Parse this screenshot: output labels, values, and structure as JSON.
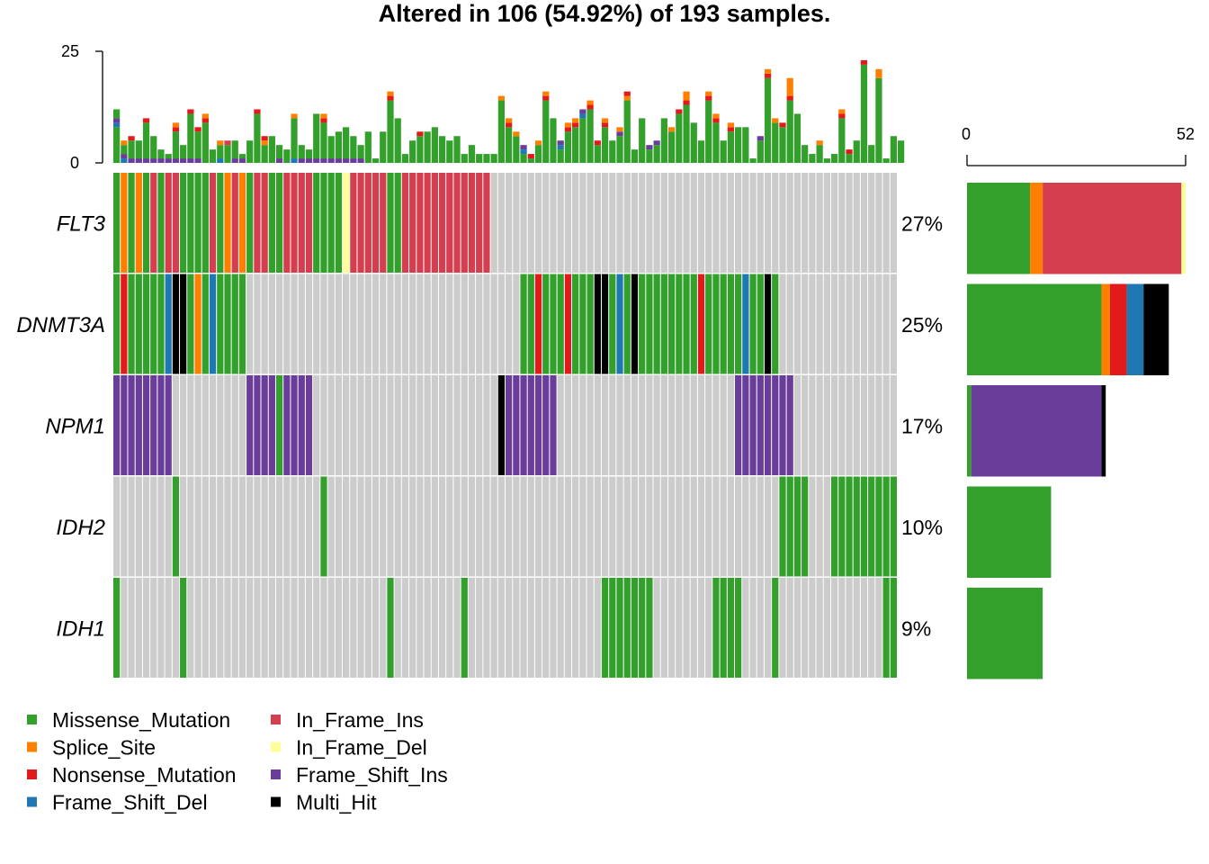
{
  "chart_data": {
    "type": "oncoplot",
    "title": "Altered in 106 (54.92%) of 193 samples.",
    "n_samples_shown": 106,
    "top_axis": {
      "ticks": [
        "0",
        "25"
      ],
      "min": 0,
      "max": 25
    },
    "right_axis": {
      "ticks": [
        "0",
        "52"
      ],
      "min": 0,
      "max": 52
    },
    "genes": [
      {
        "name": "FLT3",
        "pct": "27%",
        "counts": {
          "Missense_Mutation": 15,
          "Splice_Site": 3,
          "In_Frame_Ins": 33,
          "In_Frame_Del": 1
        }
      },
      {
        "name": "DNMT3A",
        "pct": "25%",
        "counts": {
          "Missense_Mutation": 32,
          "Splice_Site": 2,
          "Nonsense_Mutation": 4,
          "Frame_Shift_Del": 4,
          "Multi_Hit": 6
        }
      },
      {
        "name": "NPM1",
        "pct": "17%",
        "counts": {
          "Missense_Mutation": 1,
          "Frame_Shift_Ins": 31,
          "Multi_Hit": 1
        }
      },
      {
        "name": "IDH2",
        "pct": "10%",
        "counts": {
          "Missense_Mutation": 20
        }
      },
      {
        "name": "IDH1",
        "pct": "9%",
        "counts": {
          "Missense_Mutation": 18
        }
      }
    ],
    "legend": [
      {
        "label": "Missense_Mutation",
        "color": "#33A02C"
      },
      {
        "label": "Splice_Site",
        "color": "#FF7F00"
      },
      {
        "label": "Nonsense_Mutation",
        "color": "#E31A1C"
      },
      {
        "label": "Frame_Shift_Del",
        "color": "#1F78B4"
      },
      {
        "label": "In_Frame_Ins",
        "color": "#D53E4F"
      },
      {
        "label": "In_Frame_Del",
        "color": "#FFFF99"
      },
      {
        "label": "Frame_Shift_Ins",
        "color": "#6A3D9A"
      },
      {
        "label": "Multi_Hit",
        "color": "#000000"
      }
    ],
    "legend_order": [
      "Missense_Mutation",
      "In_Frame_Ins",
      "Splice_Site",
      "In_Frame_Del",
      "Nonsense_Mutation",
      "Frame_Shift_Ins",
      "Frame_Shift_Del",
      "Multi_Hit"
    ],
    "background_color": "#CCCCCC",
    "matrix_codes": {
      "M": "Missense_Mutation",
      "S": "Splice_Site",
      "N": "Nonsense_Mutation",
      "D": "Frame_Shift_Del",
      "I": "In_Frame_Ins",
      "d": "In_Frame_Del",
      "F": "Frame_Shift_Ins",
      "H": "Multi_Hit",
      ".": "none"
    },
    "matrix": {
      "FLT3": "MSMSMIMIIMMMMIMSISMIIMMIIIIMMMMdIIIIIMMIIIIIIIIIIII.......................................................",
      "DNMT3A": "MNMMMMMDHHMSMDMMMM.....................................MMNMMMNMMMHHMDMHMMMMMMMMNMMMMMDMMHM.......................",
      "NPM1": "FFFFFFFF..........FFFFMFFFF.........................HFFFFFFF........................FFFFFFFF..................",
      "IDH2": "........M...................M.............................................................MMMM...MMMMMMMMMMMMMMM...",
      "IDH1": "M........M...........................M.........M..................MMMMMMM........MMMM....M..............MM"
    },
    "tmb": [
      [
        {
          "t": "Missense_Mutation",
          "v": 8
        },
        {
          "t": "Frame_Shift_Del",
          "v": 1
        },
        {
          "t": "Frame_Shift_Ins",
          "v": 1
        },
        {
          "t": "Missense_Mutation",
          "v": 2
        }
      ],
      [
        {
          "t": "Frame_Shift_Del",
          "v": 1
        },
        {
          "t": "Frame_Shift_Ins",
          "v": 1
        },
        {
          "t": "Missense_Mutation",
          "v": 2
        },
        {
          "t": "Splice_Site",
          "v": 1
        }
      ],
      [
        {
          "t": "Frame_Shift_Ins",
          "v": 1
        },
        {
          "t": "Missense_Mutation",
          "v": 4
        },
        {
          "t": "Nonsense_Mutation",
          "v": 1
        }
      ],
      [
        {
          "t": "Frame_Shift_Ins",
          "v": 1
        },
        {
          "t": "Missense_Mutation",
          "v": 4
        }
      ],
      [
        {
          "t": "Frame_Shift_Ins",
          "v": 1
        },
        {
          "t": "Missense_Mutation",
          "v": 8
        },
        {
          "t": "Nonsense_Mutation",
          "v": 1
        }
      ],
      [
        {
          "t": "Frame_Shift_Ins",
          "v": 1
        },
        {
          "t": "Missense_Mutation",
          "v": 5
        }
      ],
      [
        {
          "t": "Frame_Shift_Ins",
          "v": 1
        },
        {
          "t": "Missense_Mutation",
          "v": 2
        }
      ],
      [
        {
          "t": "Frame_Shift_Ins",
          "v": 1
        },
        {
          "t": "Missense_Mutation",
          "v": 1
        }
      ],
      [
        {
          "t": "Frame_Shift_Ins",
          "v": 1
        },
        {
          "t": "Missense_Mutation",
          "v": 6
        },
        {
          "t": "Nonsense_Mutation",
          "v": 1
        },
        {
          "t": "Splice_Site",
          "v": 1
        }
      ],
      [
        {
          "t": "Frame_Shift_Ins",
          "v": 1
        },
        {
          "t": "Missense_Mutation",
          "v": 3
        }
      ],
      [
        {
          "t": "Frame_Shift_Ins",
          "v": 1
        },
        {
          "t": "Missense_Mutation",
          "v": 10
        },
        {
          "t": "Nonsense_Mutation",
          "v": 1
        }
      ],
      [
        {
          "t": "Frame_Shift_Ins",
          "v": 1
        },
        {
          "t": "Missense_Mutation",
          "v": 6
        },
        {
          "t": "Nonsense_Mutation",
          "v": 1
        }
      ],
      [
        {
          "t": "Missense_Mutation",
          "v": 9
        },
        {
          "t": "Nonsense_Mutation",
          "v": 1
        },
        {
          "t": "Splice_Site",
          "v": 1
        }
      ],
      [
        {
          "t": "Missense_Mutation",
          "v": 3
        }
      ],
      [
        {
          "t": "Frame_Shift_Del",
          "v": 1
        },
        {
          "t": "Missense_Mutation",
          "v": 3
        },
        {
          "t": "Splice_Site",
          "v": 1
        }
      ],
      [
        {
          "t": "Missense_Mutation",
          "v": 4
        },
        {
          "t": "In_Frame_Ins",
          "v": 1
        }
      ],
      [
        {
          "t": "Frame_Shift_Ins",
          "v": 1
        },
        {
          "t": "Missense_Mutation",
          "v": 4
        }
      ],
      [
        {
          "t": "Frame_Shift_Ins",
          "v": 1
        },
        {
          "t": "Missense_Mutation",
          "v": 1
        }
      ],
      [
        {
          "t": "Missense_Mutation",
          "v": 5
        }
      ],
      [
        {
          "t": "Missense_Mutation",
          "v": 11
        },
        {
          "t": "Nonsense_Mutation",
          "v": 1
        }
      ],
      [
        {
          "t": "Missense_Mutation",
          "v": 4
        },
        {
          "t": "Splice_Site",
          "v": 1
        },
        {
          "t": "Nonsense_Mutation",
          "v": 1
        }
      ],
      [
        {
          "t": "Missense_Mutation",
          "v": 6
        }
      ],
      [
        {
          "t": "Frame_Shift_Ins",
          "v": 1
        },
        {
          "t": "Missense_Mutation",
          "v": 3
        }
      ],
      [
        {
          "t": "Missense_Mutation",
          "v": 3
        }
      ],
      [
        {
          "t": "Frame_Shift_Del",
          "v": 1
        },
        {
          "t": "Missense_Mutation",
          "v": 9
        },
        {
          "t": "Splice_Site",
          "v": 1
        }
      ],
      [
        {
          "t": "Frame_Shift_Ins",
          "v": 1
        },
        {
          "t": "Missense_Mutation",
          "v": 3
        }
      ],
      [
        {
          "t": "Frame_Shift_Ins",
          "v": 1
        },
        {
          "t": "Missense_Mutation",
          "v": 2
        }
      ],
      [
        {
          "t": "Frame_Shift_Ins",
          "v": 1
        },
        {
          "t": "Missense_Mutation",
          "v": 10
        }
      ],
      [
        {
          "t": "Frame_Shift_Ins",
          "v": 1
        },
        {
          "t": "Missense_Mutation",
          "v": 8
        },
        {
          "t": "Nonsense_Mutation",
          "v": 1
        },
        {
          "t": "Splice_Site",
          "v": 1
        }
      ],
      [
        {
          "t": "Frame_Shift_Ins",
          "v": 1
        },
        {
          "t": "Missense_Mutation",
          "v": 5
        }
      ],
      [
        {
          "t": "Frame_Shift_Ins",
          "v": 1
        },
        {
          "t": "Missense_Mutation",
          "v": 6
        }
      ],
      [
        {
          "t": "Frame_Shift_Ins",
          "v": 1
        },
        {
          "t": "Missense_Mutation",
          "v": 7
        }
      ],
      [
        {
          "t": "Frame_Shift_Ins",
          "v": 1
        },
        {
          "t": "Missense_Mutation",
          "v": 5
        }
      ],
      [
        {
          "t": "Frame_Shift_Ins",
          "v": 1
        },
        {
          "t": "Missense_Mutation",
          "v": 3
        }
      ],
      [
        {
          "t": "Missense_Mutation",
          "v": 7
        }
      ],
      [
        {
          "t": "Missense_Mutation",
          "v": 1
        }
      ],
      [
        {
          "t": "Missense_Mutation",
          "v": 7
        }
      ],
      [
        {
          "t": "Missense_Mutation",
          "v": 14
        },
        {
          "t": "Nonsense_Mutation",
          "v": 1
        },
        {
          "t": "Splice_Site",
          "v": 1
        }
      ],
      [
        {
          "t": "Missense_Mutation",
          "v": 10
        }
      ],
      [
        {
          "t": "Missense_Mutation",
          "v": 2
        }
      ],
      [
        {
          "t": "Missense_Mutation",
          "v": 5
        }
      ],
      [
        {
          "t": "Missense_Mutation",
          "v": 6
        },
        {
          "t": "Nonsense_Mutation",
          "v": 1
        }
      ],
      [
        {
          "t": "Missense_Mutation",
          "v": 7
        }
      ],
      [
        {
          "t": "Missense_Mutation",
          "v": 8
        }
      ],
      [
        {
          "t": "Missense_Mutation",
          "v": 6
        }
      ],
      [
        {
          "t": "Missense_Mutation",
          "v": 5
        }
      ],
      [
        {
          "t": "Missense_Mutation",
          "v": 6
        }
      ],
      [
        {
          "t": "Missense_Mutation",
          "v": 2
        }
      ],
      [
        {
          "t": "Missense_Mutation",
          "v": 4
        }
      ],
      [
        {
          "t": "Missense_Mutation",
          "v": 2
        }
      ],
      [
        {
          "t": "Missense_Mutation",
          "v": 2
        }
      ],
      [
        {
          "t": "Missense_Mutation",
          "v": 2
        }
      ],
      [
        {
          "t": "Missense_Mutation",
          "v": 14
        },
        {
          "t": "Splice_Site",
          "v": 1
        }
      ],
      [
        {
          "t": "Missense_Mutation",
          "v": 8
        },
        {
          "t": "Nonsense_Mutation",
          "v": 1
        },
        {
          "t": "Splice_Site",
          "v": 1
        }
      ],
      [
        {
          "t": "Missense_Mutation",
          "v": 6
        },
        {
          "t": "Splice_Site",
          "v": 1
        }
      ],
      [
        {
          "t": "Missense_Mutation",
          "v": 2
        },
        {
          "t": "Frame_Shift_Del",
          "v": 1
        },
        {
          "t": "Frame_Shift_Ins",
          "v": 1
        }
      ],
      [
        {
          "t": "Missense_Mutation",
          "v": 1
        },
        {
          "t": "Nonsense_Mutation",
          "v": 1
        }
      ],
      [
        {
          "t": "Missense_Mutation",
          "v": 4
        },
        {
          "t": "Splice_Site",
          "v": 1
        }
      ],
      [
        {
          "t": "Missense_Mutation",
          "v": 14
        },
        {
          "t": "Nonsense_Mutation",
          "v": 1
        },
        {
          "t": "Splice_Site",
          "v": 1
        }
      ],
      [
        {
          "t": "Missense_Mutation",
          "v": 10
        }
      ],
      [
        {
          "t": "Missense_Mutation",
          "v": 3
        },
        {
          "t": "Frame_Shift_Del",
          "v": 1
        },
        {
          "t": "Frame_Shift_Ins",
          "v": 1
        }
      ],
      [
        {
          "t": "Missense_Mutation",
          "v": 7
        },
        {
          "t": "Nonsense_Mutation",
          "v": 1
        },
        {
          "t": "Splice_Site",
          "v": 1
        }
      ],
      [
        {
          "t": "Missense_Mutation",
          "v": 8
        },
        {
          "t": "Nonsense_Mutation",
          "v": 1
        },
        {
          "t": "Splice_Site",
          "v": 1
        }
      ],
      [
        {
          "t": "Missense_Mutation",
          "v": 10
        },
        {
          "t": "Frame_Shift_Del",
          "v": 1
        },
        {
          "t": "Frame_Shift_Ins",
          "v": 1
        }
      ],
      [
        {
          "t": "Missense_Mutation",
          "v": 12
        },
        {
          "t": "Nonsense_Mutation",
          "v": 1
        },
        {
          "t": "Splice_Site",
          "v": 1
        }
      ],
      [
        {
          "t": "Missense_Mutation",
          "v": 4
        },
        {
          "t": "Nonsense_Mutation",
          "v": 1
        }
      ],
      [
        {
          "t": "Missense_Mutation",
          "v": 8
        },
        {
          "t": "Nonsense_Mutation",
          "v": 1
        },
        {
          "t": "Splice_Site",
          "v": 1
        }
      ],
      [
        {
          "t": "Missense_Mutation",
          "v": 5
        }
      ],
      [
        {
          "t": "Missense_Mutation",
          "v": 6
        },
        {
          "t": "Frame_Shift_Ins",
          "v": 1
        },
        {
          "t": "Splice_Site",
          "v": 1
        }
      ],
      [
        {
          "t": "Missense_Mutation",
          "v": 14
        },
        {
          "t": "Splice_Site",
          "v": 1
        },
        {
          "t": "Nonsense_Mutation",
          "v": 1
        }
      ],
      [
        {
          "t": "Missense_Mutation",
          "v": 3
        }
      ],
      [
        {
          "t": "Missense_Mutation",
          "v": 10
        }
      ],
      [
        {
          "t": "Missense_Mutation",
          "v": 3
        },
        {
          "t": "Frame_Shift_Ins",
          "v": 1
        }
      ],
      [
        {
          "t": "Missense_Mutation",
          "v": 4
        },
        {
          "t": "Frame_Shift_Ins",
          "v": 1
        }
      ],
      [
        {
          "t": "Missense_Mutation",
          "v": 10
        }
      ],
      [
        {
          "t": "Missense_Mutation",
          "v": 7
        },
        {
          "t": "Splice_Site",
          "v": 1
        }
      ],
      [
        {
          "t": "Missense_Mutation",
          "v": 11
        },
        {
          "t": "Nonsense_Mutation",
          "v": 1
        }
      ],
      [
        {
          "t": "Missense_Mutation",
          "v": 13
        },
        {
          "t": "Nonsense_Mutation",
          "v": 1
        },
        {
          "t": "Splice_Site",
          "v": 2
        }
      ],
      [
        {
          "t": "Missense_Mutation",
          "v": 9
        }
      ],
      [
        {
          "t": "Missense_Mutation",
          "v": 5
        }
      ],
      [
        {
          "t": "Missense_Mutation",
          "v": 14
        },
        {
          "t": "Nonsense_Mutation",
          "v": 1
        },
        {
          "t": "Splice_Site",
          "v": 1
        }
      ],
      [
        {
          "t": "Missense_Mutation",
          "v": 9
        },
        {
          "t": "Nonsense_Mutation",
          "v": 1
        },
        {
          "t": "Splice_Site",
          "v": 1
        }
      ],
      [
        {
          "t": "Missense_Mutation",
          "v": 5
        }
      ],
      [
        {
          "t": "Missense_Mutation",
          "v": 7
        },
        {
          "t": "Nonsense_Mutation",
          "v": 1
        },
        {
          "t": "Splice_Site",
          "v": 1
        }
      ],
      [
        {
          "t": "Missense_Mutation",
          "v": 8
        }
      ],
      [
        {
          "t": "Missense_Mutation",
          "v": 8
        }
      ],
      [
        {
          "t": "Missense_Mutation",
          "v": 1
        }
      ],
      [
        {
          "t": "Missense_Mutation",
          "v": 5
        },
        {
          "t": "Frame_Shift_Ins",
          "v": 1
        }
      ],
      [
        {
          "t": "Missense_Mutation",
          "v": 19
        },
        {
          "t": "Nonsense_Mutation",
          "v": 1
        },
        {
          "t": "Splice_Site",
          "v": 1
        }
      ],
      [
        {
          "t": "Missense_Mutation",
          "v": 9
        },
        {
          "t": "Splice_Site",
          "v": 1
        }
      ],
      [
        {
          "t": "Missense_Mutation",
          "v": 8
        },
        {
          "t": "Nonsense_Mutation",
          "v": 1
        }
      ],
      [
        {
          "t": "Missense_Mutation",
          "v": 14
        },
        {
          "t": "Nonsense_Mutation",
          "v": 1
        },
        {
          "t": "Splice_Site",
          "v": 4
        }
      ],
      [
        {
          "t": "Missense_Mutation",
          "v": 11
        }
      ],
      [
        {
          "t": "Missense_Mutation",
          "v": 4
        }
      ],
      [
        {
          "t": "Missense_Mutation",
          "v": 2
        }
      ],
      [
        {
          "t": "Missense_Mutation",
          "v": 4
        },
        {
          "t": "Splice_Site",
          "v": 1
        }
      ],
      [
        {
          "t": "Missense_Mutation",
          "v": 1
        }
      ],
      [
        {
          "t": "Missense_Mutation",
          "v": 2
        }
      ],
      [
        {
          "t": "Missense_Mutation",
          "v": 10
        },
        {
          "t": "Nonsense_Mutation",
          "v": 1
        },
        {
          "t": "Splice_Site",
          "v": 1
        }
      ],
      [
        {
          "t": "Missense_Mutation",
          "v": 2
        },
        {
          "t": "Nonsense_Mutation",
          "v": 1
        }
      ],
      [
        {
          "t": "Missense_Mutation",
          "v": 5
        }
      ],
      [
        {
          "t": "Missense_Mutation",
          "v": 22
        },
        {
          "t": "Nonsense_Mutation",
          "v": 1
        }
      ],
      [
        {
          "t": "Missense_Mutation",
          "v": 4
        }
      ],
      [
        {
          "t": "Missense_Mutation",
          "v": 19
        },
        {
          "t": "Splice_Site",
          "v": 2
        }
      ],
      [
        {
          "t": "Missense_Mutation",
          "v": 1
        }
      ],
      [
        {
          "t": "Missense_Mutation",
          "v": 6
        }
      ],
      [
        {
          "t": "Missense_Mutation",
          "v": 5
        }
      ]
    ]
  }
}
